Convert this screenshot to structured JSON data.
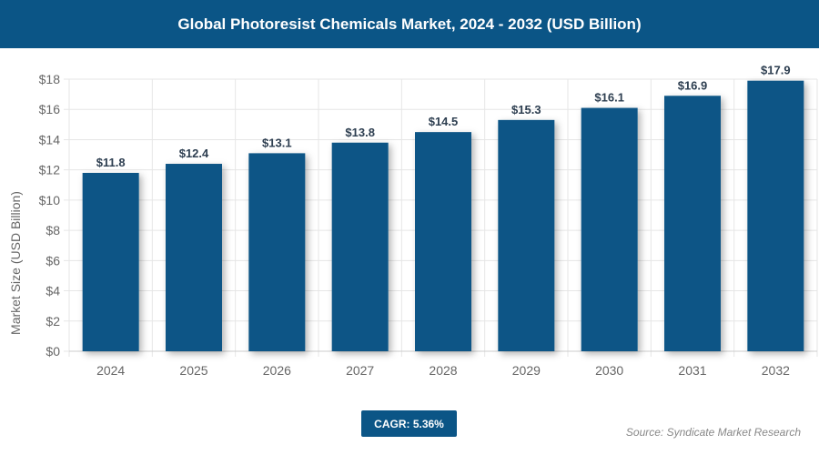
{
  "chart_data": {
    "type": "bar",
    "title": "Global Photoresist Chemicals Market, 2024 - 2032 (USD Billion)",
    "ylabel": "Market Size (USD Billion)",
    "xlabel": "",
    "categories": [
      "2024",
      "2025",
      "2026",
      "2027",
      "2028",
      "2029",
      "2030",
      "2031",
      "2032"
    ],
    "values": [
      11.8,
      12.4,
      13.1,
      13.8,
      14.5,
      15.3,
      16.1,
      16.9,
      17.9
    ],
    "data_labels": [
      "$11.8",
      "$12.4",
      "$13.1",
      "$13.8",
      "$14.5",
      "$15.3",
      "$16.1",
      "$16.9",
      "$17.9"
    ],
    "ylim": [
      0,
      18
    ],
    "yticks": [
      "$0",
      "$2",
      "$4",
      "$6",
      "$8",
      "$10",
      "$12",
      "$14",
      "$16",
      "$18"
    ],
    "grid": true,
    "bar_color": "#0b5586"
  },
  "footer": {
    "cagr": "CAGR: 5.36%",
    "source": "Source: Syndicate Market Research"
  }
}
